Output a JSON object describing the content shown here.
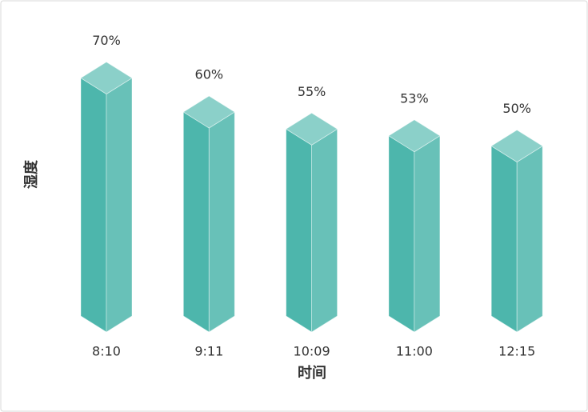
{
  "chart_data": {
    "type": "bar3d",
    "x_label": "时间",
    "y_label": "湿度",
    "categories": [
      "8:10",
      "9:11",
      "10:09",
      "11:00",
      "12:15"
    ],
    "values": [
      70,
      60,
      55,
      53,
      50
    ],
    "value_labels": [
      "70%",
      "60%",
      "55%",
      "53%",
      "50%"
    ],
    "color": "#4db6ac"
  }
}
